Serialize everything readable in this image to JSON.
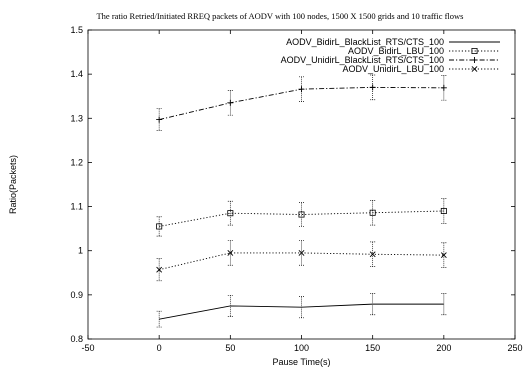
{
  "chart_data": {
    "type": "line",
    "title": "The ratio Retried/Initiated RREQ packets of AODV with 100 nodes, 1500 X 1500 grids  and 10 traffic flows",
    "xlabel": "Pause Time(s)",
    "ylabel": "Ratio(Packets)",
    "xlim": [
      -50,
      250
    ],
    "ylim": [
      0.8,
      1.5
    ],
    "xticks": [
      -50,
      0,
      50,
      100,
      150,
      200,
      250
    ],
    "yticks": [
      0.8,
      0.9,
      1,
      1.1,
      1.2,
      1.3,
      1.4,
      1.5
    ],
    "xtick_labels": [
      "-50",
      "0",
      "50",
      "100",
      "150",
      "200",
      "250"
    ],
    "ytick_labels": [
      "0.8",
      "0.9",
      "1",
      "1.1",
      "1.2",
      "1.3",
      "1.4",
      "1.5"
    ],
    "x": [
      0,
      50,
      100,
      150,
      200
    ],
    "legend_position": "top-right",
    "grid": false,
    "series": [
      {
        "name": "AODV_BidirL_BlackList_RTS/CTS_100",
        "values": [
          0.845,
          0.875,
          0.872,
          0.879,
          0.879
        ],
        "error": [
          0.018,
          0.024,
          0.024,
          0.024,
          0.024
        ],
        "marker": "none",
        "line": "solid"
      },
      {
        "name": "AODV_BidirL_LBU_100",
        "values": [
          1.055,
          1.085,
          1.082,
          1.086,
          1.09
        ],
        "error": [
          0.022,
          0.027,
          0.027,
          0.028,
          0.028
        ],
        "marker": "square",
        "line": "dotted"
      },
      {
        "name": "AODV_UnidirL_BlackList_RTS/CTS_100",
        "values": [
          1.297,
          1.335,
          1.366,
          1.37,
          1.369
        ],
        "error": [
          0.025,
          0.028,
          0.028,
          0.028,
          0.028
        ],
        "marker": "plus",
        "line": "dashdot"
      },
      {
        "name": "AODV_UnidirL_LBU_100",
        "values": [
          0.957,
          0.995,
          0.995,
          0.992,
          0.99
        ],
        "error": [
          0.025,
          0.028,
          0.028,
          0.028,
          0.028
        ],
        "marker": "x",
        "line": "dotted"
      }
    ]
  }
}
